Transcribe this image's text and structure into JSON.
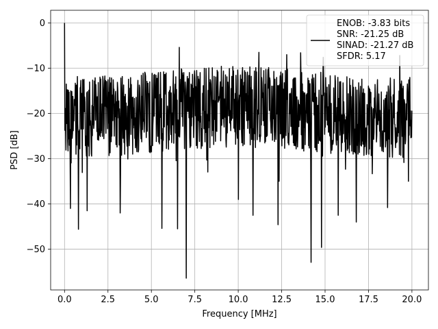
{
  "chart_data": {
    "type": "line",
    "xlabel": "Frequency [MHz]",
    "ylabel": "PSD [dB]",
    "xlim": [
      -0.8,
      20.95
    ],
    "ylim": [
      -59.0,
      2.8
    ],
    "grid": true,
    "legend_placement": "top-right",
    "x_ticks": [
      0.0,
      2.5,
      5.0,
      7.5,
      10.0,
      12.5,
      15.0,
      17.5,
      20.0
    ],
    "x_tick_labels": [
      "0.0",
      "2.5",
      "5.0",
      "7.5",
      "10.0",
      "12.5",
      "15.0",
      "17.5",
      "20.0"
    ],
    "y_ticks": [
      0,
      -10,
      -20,
      -30,
      -40,
      -50
    ],
    "y_tick_labels": [
      "0",
      "−10",
      "−20",
      "−30",
      "−40",
      "−50"
    ],
    "legend": {
      "line_color": "#000000",
      "lines": [
        "ENOB: -3.83 bits",
        "SNR: -21.25 dB",
        "SINAD: -21.27 dB",
        "SFDR: 5.17"
      ]
    },
    "series": [
      {
        "color": "#000000",
        "x_start": 0.0,
        "x_end": 20.0,
        "n_points": 1000,
        "start_value": 0.0,
        "typical_upper_envelope": -12,
        "typical_lower_envelope": -30,
        "peaks": [
          {
            "x": 0.0,
            "y": 0.0
          },
          {
            "x": 6.6,
            "y": -5.4
          },
          {
            "x": 11.2,
            "y": -6.5
          },
          {
            "x": 12.8,
            "y": -7.0
          },
          {
            "x": 13.6,
            "y": -6.6
          },
          {
            "x": 14.9,
            "y": -7.6
          },
          {
            "x": 19.3,
            "y": -7.2
          }
        ],
        "dips": [
          {
            "x": 0.35,
            "y": -41.0
          },
          {
            "x": 0.8,
            "y": -45.6
          },
          {
            "x": 1.3,
            "y": -41.5
          },
          {
            "x": 3.2,
            "y": -42.0
          },
          {
            "x": 5.6,
            "y": -45.4
          },
          {
            "x": 6.5,
            "y": -45.5
          },
          {
            "x": 7.0,
            "y": -56.4
          },
          {
            "x": 10.0,
            "y": -39.0
          },
          {
            "x": 10.85,
            "y": -42.5
          },
          {
            "x": 12.3,
            "y": -44.6
          },
          {
            "x": 14.2,
            "y": -52.9
          },
          {
            "x": 14.8,
            "y": -49.6
          },
          {
            "x": 15.75,
            "y": -42.5
          },
          {
            "x": 16.8,
            "y": -44.0
          },
          {
            "x": 18.6,
            "y": -40.8
          },
          {
            "x": 19.8,
            "y": -35.0
          }
        ]
      }
    ]
  }
}
